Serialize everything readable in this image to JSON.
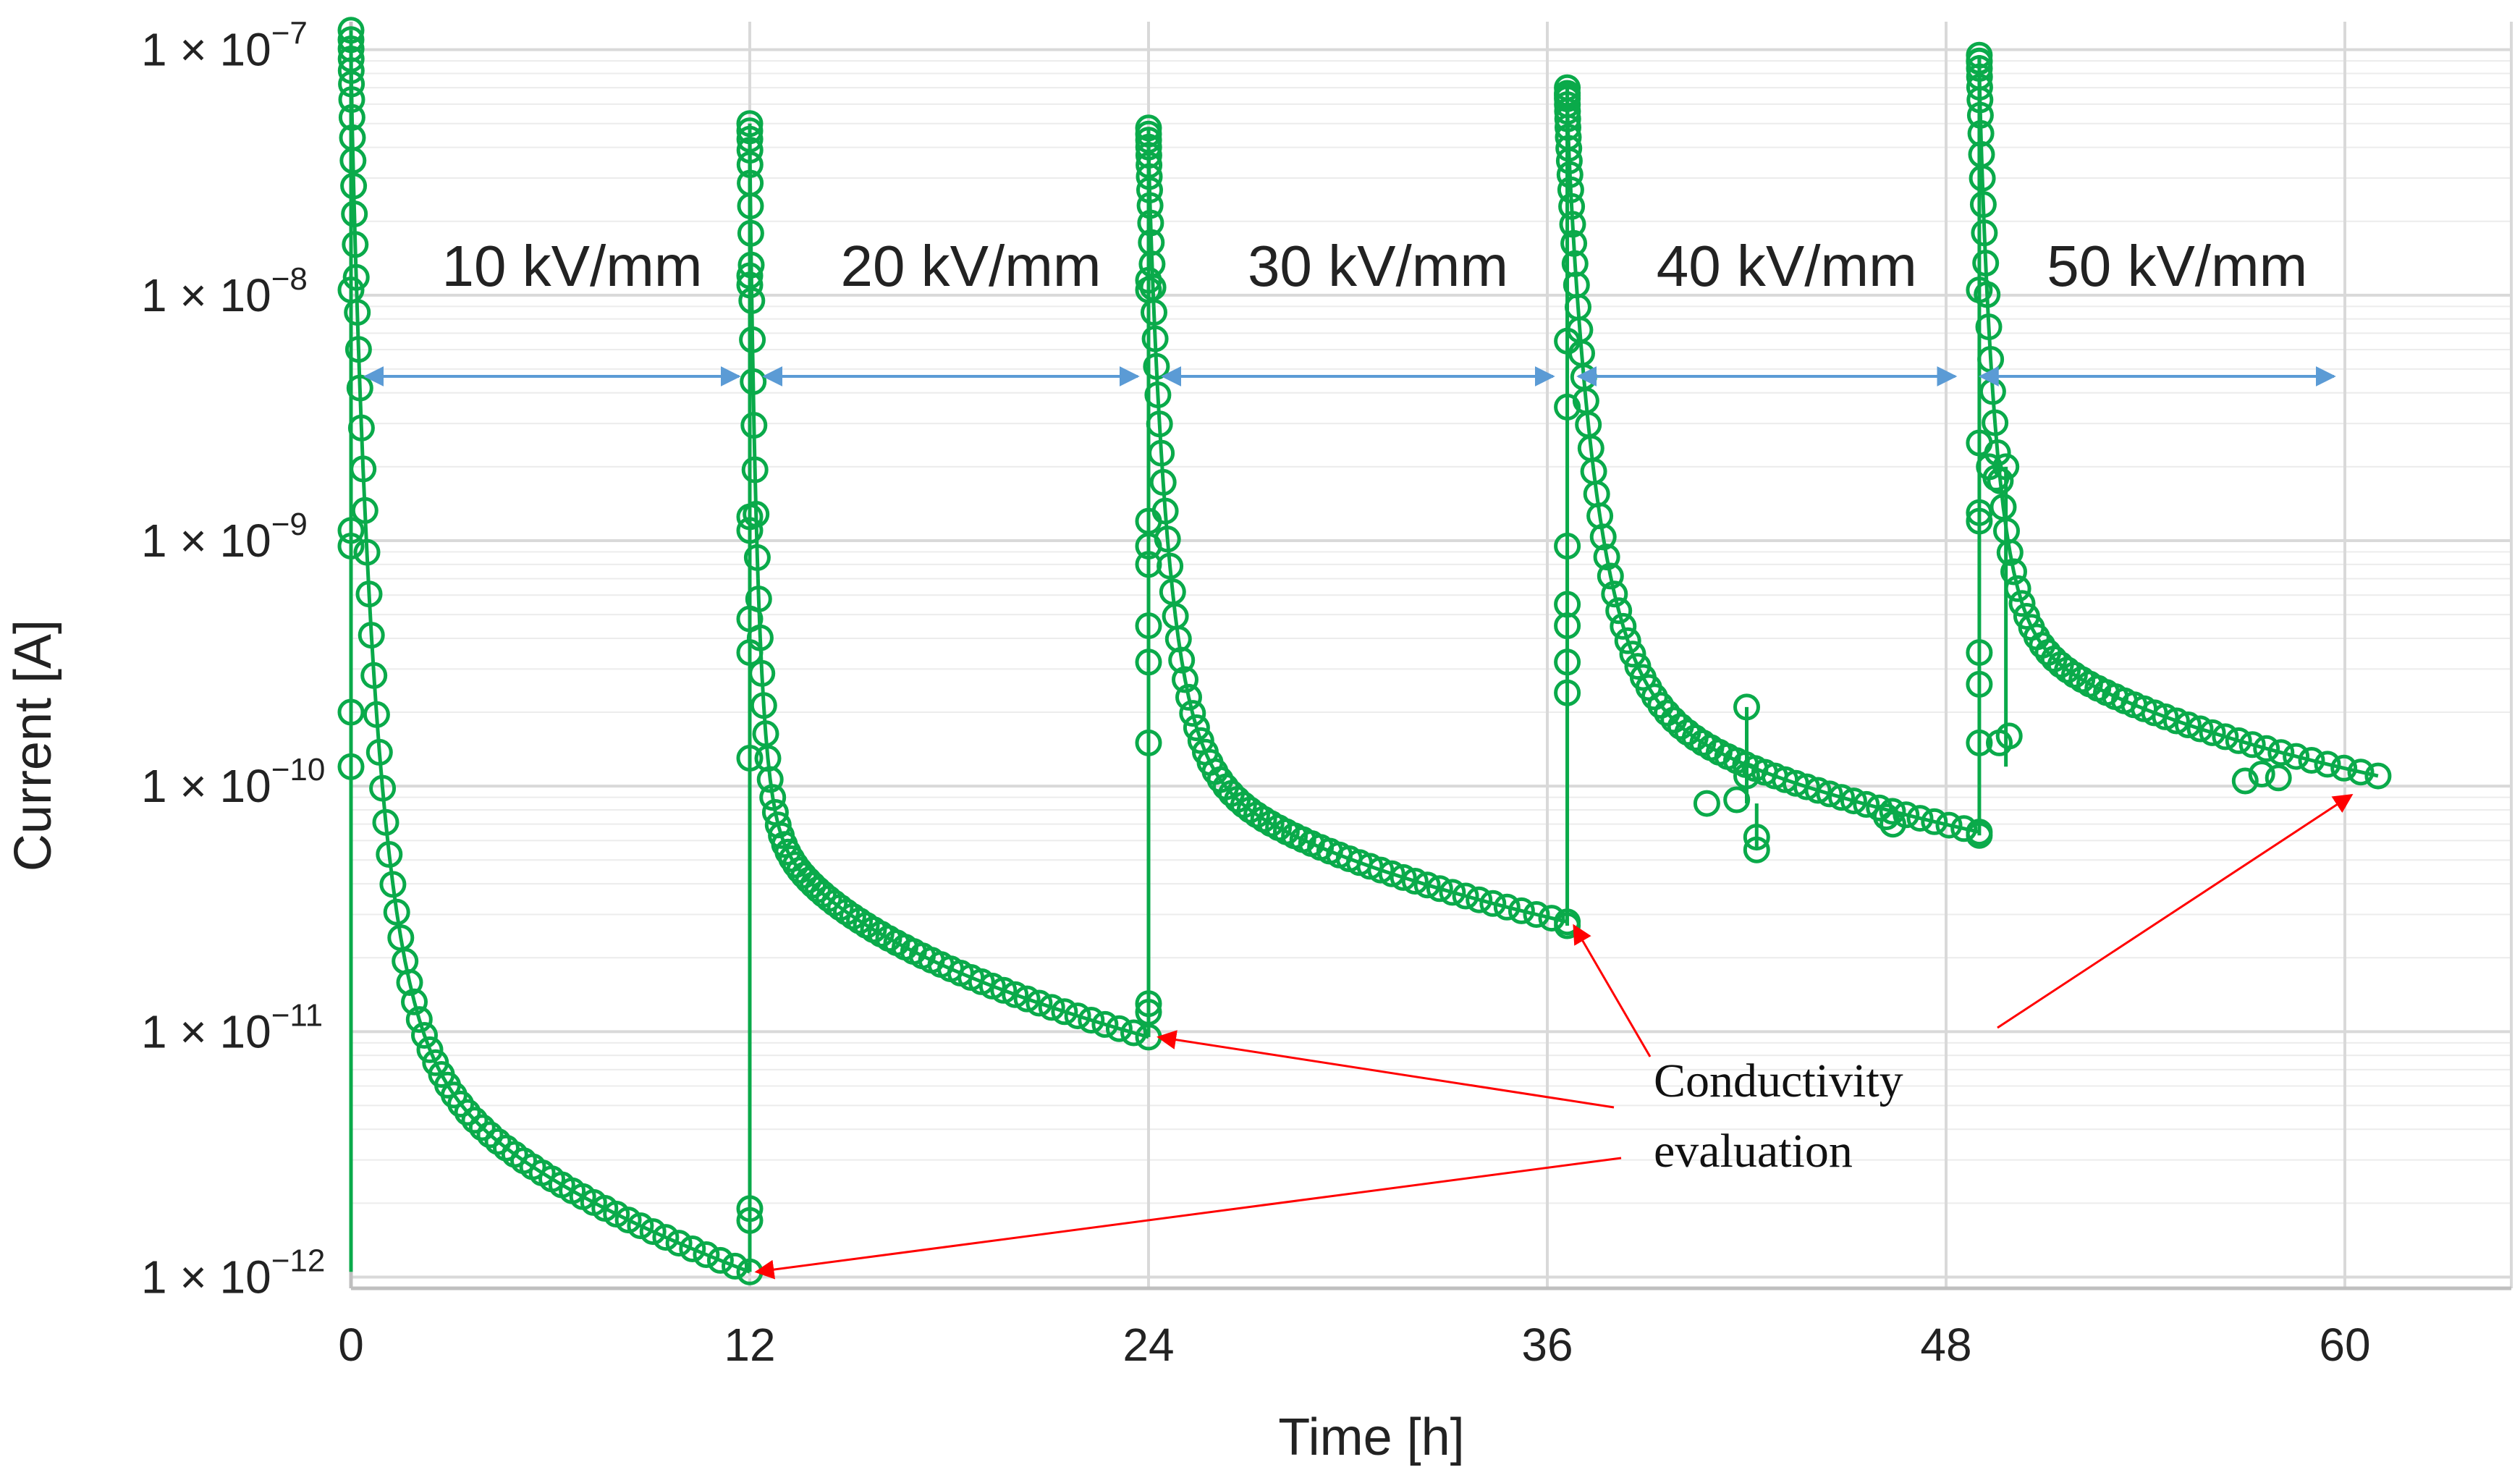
{
  "chart_data": {
    "type": "scatter",
    "xlabel": "Time [h]",
    "ylabel": "Current [A]",
    "xlim": [
      0,
      65
    ],
    "x_ticks": [
      0,
      12,
      24,
      36,
      48,
      60
    ],
    "y_scale": "log",
    "ylim": [
      9e-13,
      1.3e-07
    ],
    "y_ticks": [
      {
        "value": 1e-07,
        "mantissa": "1 × 10",
        "exp": "−7"
      },
      {
        "value": 1e-08,
        "mantissa": "1 × 10",
        "exp": "−8"
      },
      {
        "value": 1e-09,
        "mantissa": "1 × 10",
        "exp": "−9"
      },
      {
        "value": 1e-10,
        "mantissa": "1 × 10",
        "exp": "−10"
      },
      {
        "value": 1e-11,
        "mantissa": "1 × 10",
        "exp": "−11"
      },
      {
        "value": 1e-12,
        "mantissa": "1 × 10",
        "exp": "−12"
      }
    ],
    "grid": true,
    "minor_grid": true,
    "colors": {
      "series": "#0aaa4a",
      "arrow": "#5b9bd5",
      "annotation": "#ff0000",
      "grid": "#d9d9d9",
      "minor_grid": "#ececec"
    },
    "field_labels": [
      {
        "text": "10 kV/mm",
        "x_start": 0,
        "x_end": 12
      },
      {
        "text": "20 kV/mm",
        "x_start": 12,
        "x_end": 24
      },
      {
        "text": "30 kV/mm",
        "x_start": 24,
        "x_end": 36.5
      },
      {
        "text": "40 kV/mm",
        "x_start": 36.5,
        "x_end": 48.6
      },
      {
        "text": "50 kV/mm",
        "x_start": 48.6,
        "x_end": 60
      }
    ],
    "annotation": {
      "lines": [
        "Conductivity",
        "evaluation"
      ],
      "targets": [
        {
          "x": 12.2,
          "y": 1.05e-12
        },
        {
          "x": 24.3,
          "y": 9.5e-12
        },
        {
          "x": 36.8,
          "y": 2.7e-11
        },
        {
          "x": 60.2,
          "y": 9.2e-11
        }
      ]
    },
    "series": [
      {
        "segments": [
          {
            "t0": 0,
            "t1": 12,
            "i0": 1.2e-07,
            "iend": 1.05e-12,
            "tau": 0.75,
            "n": 70
          },
          {
            "t0": 12,
            "t1": 24,
            "i0": 5e-08,
            "iend": 9.5e-12,
            "tau": 0.25,
            "n": 70
          },
          {
            "t0": 24,
            "t1": 36.6,
            "i0": 4.8e-08,
            "iend": 2.8e-11,
            "tau": 0.6,
            "n": 70
          },
          {
            "t0": 36.6,
            "t1": 49,
            "i0": 7e-08,
            "iend": 6.5e-11,
            "tau": 0.9,
            "n": 70
          },
          {
            "t0": 49,
            "t1": 61,
            "i0": 9.5e-08,
            "iend": 1.1e-10,
            "tau": 0.5,
            "n": 60
          }
        ],
        "extra_points": [
          [
            0,
            1.1e-09
          ],
          [
            0,
            9.5e-10
          ],
          [
            0,
            1.05e-08
          ],
          [
            0,
            2e-10
          ],
          [
            0,
            1.2e-10
          ],
          [
            12,
            1.25e-09
          ],
          [
            12,
            1.1e-09
          ],
          [
            12,
            4.8e-10
          ],
          [
            12,
            3.5e-10
          ],
          [
            12,
            1.2e-08
          ],
          [
            12,
            1.1e-08
          ],
          [
            12,
            1.3e-10
          ],
          [
            12,
            1.9e-12
          ],
          [
            12,
            1.7e-12
          ],
          [
            24,
            1.2e-09
          ],
          [
            24,
            9.5e-10
          ],
          [
            24,
            8e-10
          ],
          [
            24,
            4.5e-10
          ],
          [
            24,
            3.2e-10
          ],
          [
            24,
            1.15e-08
          ],
          [
            24,
            1.05e-08
          ],
          [
            24,
            1.5e-10
          ],
          [
            24,
            1.3e-11
          ],
          [
            24,
            1.2e-11
          ],
          [
            36.6,
            6.5e-08
          ],
          [
            36.6,
            6.5e-09
          ],
          [
            36.6,
            3.5e-09
          ],
          [
            36.6,
            9.5e-10
          ],
          [
            36.6,
            5.5e-10
          ],
          [
            36.6,
            4.5e-10
          ],
          [
            36.6,
            3.2e-10
          ],
          [
            36.6,
            2.4e-10
          ],
          [
            36.6,
            2.7e-11
          ],
          [
            49,
            9e-08
          ],
          [
            49,
            1.05e-08
          ],
          [
            49,
            2.5e-09
          ],
          [
            49,
            1.3e-09
          ],
          [
            49,
            1.2e-09
          ],
          [
            49,
            3.5e-10
          ],
          [
            49,
            2.6e-10
          ],
          [
            49,
            1.5e-10
          ],
          [
            49,
            6.3e-11
          ],
          [
            49.3,
            2e-09
          ],
          [
            49.5,
            1.8e-09
          ],
          [
            49.8,
            2e-09
          ],
          [
            49.6,
            1.5e-10
          ],
          [
            49.9,
            1.6e-10
          ],
          [
            42,
            2.1e-10
          ],
          [
            42,
            1.1e-10
          ],
          [
            42.3,
            6.2e-11
          ],
          [
            42.3,
            5.5e-11
          ],
          [
            40.8,
            8.5e-11
          ],
          [
            41.7,
            8.8e-11
          ],
          [
            46.2,
            7.5e-11
          ],
          [
            46.4,
            7e-11
          ],
          [
            57,
            1.05e-10
          ],
          [
            57.5,
            1.12e-10
          ],
          [
            58,
            1.08e-10
          ]
        ],
        "vertical_jumps": [
          {
            "x": 0,
            "from": 1.05e-12,
            "to": 1.2e-07
          },
          {
            "x": 12,
            "from": 1.05e-12,
            "to": 5e-08
          },
          {
            "x": 24,
            "from": 9.5e-12,
            "to": 4.8e-08
          },
          {
            "x": 36.6,
            "from": 2.7e-11,
            "to": 7e-08
          },
          {
            "x": 49,
            "from": 6.3e-11,
            "to": 9.5e-08
          },
          {
            "x": 49.8,
            "from": 1.2e-10,
            "to": 2e-09
          },
          {
            "x": 42,
            "from": 8.5e-11,
            "to": 2.1e-10
          },
          {
            "x": 42.3,
            "from": 5.5e-11,
            "to": 8.5e-11
          }
        ]
      }
    ]
  }
}
